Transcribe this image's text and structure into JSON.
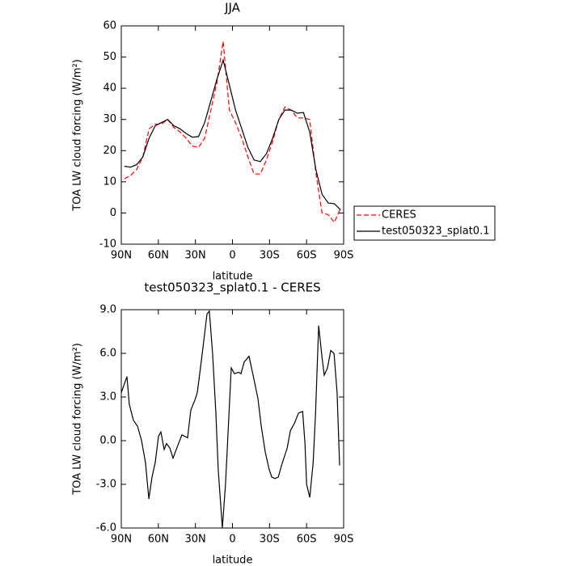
{
  "chart_data": [
    {
      "type": "line",
      "title": "JJA",
      "xlabel": "latitude",
      "ylabel": "TOA LW cloud forcing (W/m²)",
      "x": [
        87.5,
        82.5,
        77.5,
        72.5,
        67.5,
        62.5,
        57.5,
        52.5,
        47.5,
        42.5,
        37.5,
        32.5,
        27.5,
        22.5,
        17.5,
        12.5,
        7.5,
        2.5,
        -2.5,
        -7.5,
        -12.5,
        -17.5,
        -22.5,
        -27.5,
        -32.5,
        -37.5,
        -42.5,
        -47.5,
        -52.5,
        -57.5,
        -62.5,
        -67.5,
        -72.5,
        -77.5,
        -82.5,
        -87.5
      ],
      "series": [
        {
          "name": "CERES",
          "color": "#ff0000",
          "linestyle": "dashed",
          "values": [
            11,
            12,
            14,
            18,
            27,
            28.5,
            28.5,
            30,
            27.5,
            26,
            24,
            21.5,
            21,
            24,
            33,
            42,
            55,
            33,
            29,
            24,
            18,
            12.5,
            12.5,
            17,
            23,
            30,
            34,
            33,
            30.5,
            30.5,
            30,
            13,
            0,
            -0.5,
            -3,
            1.5
          ]
        },
        {
          "name": "test050323_splat0.1",
          "color": "#000000",
          "linestyle": "solid",
          "values": [
            15,
            14.7,
            15.5,
            18,
            24,
            28,
            29,
            30,
            28,
            27,
            25.5,
            24.3,
            24.5,
            29,
            36,
            43,
            49,
            41,
            33,
            27,
            21,
            17,
            16.5,
            19,
            24,
            30,
            33,
            33,
            32,
            32.2,
            26,
            14,
            6,
            3.2,
            3,
            1
          ]
        }
      ],
      "xlim": [
        90,
        -90
      ],
      "xticks": [
        {
          "value": 90,
          "label": "90N"
        },
        {
          "value": 60,
          "label": "60N"
        },
        {
          "value": 30,
          "label": "30N"
        },
        0,
        {
          "value": -30,
          "label": "30S"
        },
        {
          "value": -60,
          "label": "60S"
        },
        {
          "value": -90,
          "label": "90S"
        }
      ],
      "ylim": [
        -10,
        60
      ],
      "yticks": [
        -10,
        0,
        10,
        20,
        30,
        40,
        50,
        60
      ],
      "legend": "right"
    },
    {
      "type": "line",
      "title": "test050323_splat0.1 - CERES",
      "xlabel": "latitude",
      "ylabel": "TOA LW cloud forcing (W/m²)",
      "x": [
        90.0,
        85.4,
        83.5,
        80.2,
        76.9,
        73.6,
        70.4,
        67.7,
        65.1,
        62.5,
        59.9,
        57.9,
        55.3,
        53.4,
        50.7,
        48.1,
        45.5,
        40.9,
        36.3,
        33.7,
        30.4,
        28.5,
        25.9,
        23.3,
        20.6,
        18.7,
        16.1,
        13.5,
        11.5,
        8.2,
        5.6,
        3.0,
        1.0,
        -1.6,
        -4.9,
        -6.9,
        -9.5,
        -13.4,
        -16.7,
        -20.6,
        -23.3,
        -26.6,
        -29.8,
        -31.8,
        -34.5,
        -37.1,
        -39.7,
        -44.3,
        -46.9,
        -50.2,
        -53.5,
        -56.8,
        -58.7,
        -60.0,
        -62.6,
        -65.3,
        -67.2,
        -69.8,
        -72.4,
        -74.3,
        -76.9,
        -79.6,
        -82.2,
        -84.7,
        -86.7
      ],
      "values": [
        3.3,
        4.4,
        2.5,
        1.4,
        1,
        0,
        -1.5,
        -4,
        -2.5,
        -1.5,
        0.3,
        0.6,
        -0.6,
        -0.2,
        -0.5,
        -1.2,
        -0.6,
        0.4,
        0.2,
        2.1,
        2.8,
        3.3,
        5,
        6.8,
        8.7,
        8.9,
        6,
        2,
        -2,
        -6,
        -3,
        1.5,
        5,
        4.6,
        4.7,
        4.6,
        5.4,
        5.8,
        4.5,
        2.9,
        1,
        -0.8,
        -2,
        -2.5,
        -2.6,
        -2.5,
        -1.7,
        -0.5,
        0.7,
        1.2,
        1.9,
        2,
        -0.2,
        -3,
        -3.9,
        -1.5,
        1.8,
        7.9,
        5.8,
        4.5,
        5,
        6.2,
        6,
        3.3,
        -1.7
      ],
      "color": "#000000",
      "xlim": [
        90,
        -90
      ],
      "xticks": [
        {
          "value": 90,
          "label": "90N"
        },
        {
          "value": 60,
          "label": "60N"
        },
        {
          "value": 30,
          "label": "30N"
        },
        0,
        {
          "value": -30,
          "label": "30S"
        },
        {
          "value": -60,
          "label": "60S"
        },
        {
          "value": -90,
          "label": "90S"
        }
      ],
      "ylim": [
        -6,
        9
      ],
      "yticks": [
        {
          "value": -6,
          "label": "-6.0"
        },
        {
          "value": -3,
          "label": "-3.0"
        },
        {
          "value": 0,
          "label": "0.0"
        },
        {
          "value": 3,
          "label": "3.0"
        },
        {
          "value": 6,
          "label": "6.0"
        },
        {
          "value": 9,
          "label": "9.0"
        }
      ]
    }
  ]
}
